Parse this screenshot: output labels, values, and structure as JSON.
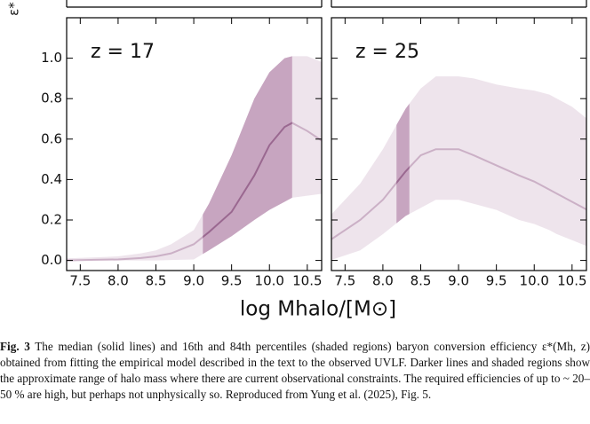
{
  "y_label": "ε*",
  "x_label": "log Mhalo/[M⊙]",
  "chart_data": [
    {
      "type": "line",
      "annotation": "z = 17",
      "x": [
        7.3,
        7.7,
        8.0,
        8.3,
        8.5,
        8.7,
        9.0,
        9.2,
        9.5,
        9.8,
        10.0,
        10.2,
        10.3,
        10.5,
        10.7
      ],
      "series": [
        {
          "name": "median",
          "color": "#a77b9f",
          "values": [
            0,
            0.003,
            0.005,
            0.012,
            0.02,
            0.035,
            0.08,
            0.14,
            0.24,
            0.42,
            0.57,
            0.66,
            0.68,
            0.64,
            0.59
          ]
        },
        {
          "name": "16th percentile",
          "color": "#c7a5c0",
          "values": [
            0,
            0,
            0,
            0,
            0,
            0.002,
            0.005,
            0.05,
            0.12,
            0.2,
            0.25,
            0.29,
            0.31,
            0.32,
            0.33
          ]
        },
        {
          "name": "84th percentile",
          "color": "#c7a5c0",
          "values": [
            0.01,
            0.015,
            0.02,
            0.035,
            0.05,
            0.08,
            0.15,
            0.28,
            0.52,
            0.8,
            0.93,
            1.0,
            1.01,
            1.01,
            0.98
          ]
        }
      ],
      "highlight_x": [
        9.12,
        10.3
      ],
      "xlim": [
        7.32,
        10.69
      ],
      "ylim": [
        -0.05,
        1.2
      ],
      "xticks": [
        7.5,
        {
          "value": 8,
          "label": "8.0"
        },
        8.5,
        {
          "value": 9,
          "label": "9.0"
        },
        9.5,
        {
          "value": 10,
          "label": "10.0"
        },
        10.5
      ],
      "yticks": [
        {
          "value": 0,
          "label": "0.0"
        },
        0.2,
        0.4,
        0.6,
        0.8,
        {
          "value": 1,
          "label": "1.0"
        }
      ]
    },
    {
      "type": "line",
      "annotation": "z = 25",
      "x": [
        7.3,
        7.7,
        8.0,
        8.3,
        8.5,
        8.7,
        9.0,
        9.2,
        9.5,
        9.8,
        10.0,
        10.2,
        10.3,
        10.5,
        10.7
      ],
      "series": [
        {
          "name": "median",
          "color": "#a77b9f",
          "values": [
            0.1,
            0.2,
            0.3,
            0.44,
            0.52,
            0.55,
            0.55,
            0.52,
            0.47,
            0.42,
            0.39,
            0.35,
            0.33,
            0.29,
            0.25
          ]
        },
        {
          "name": "16th percentile",
          "color": "#c7a5c0",
          "values": [
            0,
            0.05,
            0.13,
            0.22,
            0.26,
            0.3,
            0.3,
            0.28,
            0.25,
            0.2,
            0.18,
            0.15,
            0.13,
            0.1,
            0.07
          ]
        },
        {
          "name": "84th percentile",
          "color": "#c7a5c0",
          "values": [
            0.22,
            0.38,
            0.55,
            0.75,
            0.85,
            0.91,
            0.91,
            0.9,
            0.87,
            0.85,
            0.84,
            0.82,
            0.8,
            0.76,
            0.7
          ]
        }
      ],
      "highlight_x": [
        8.18,
        8.35
      ],
      "xlim": [
        7.32,
        10.69
      ],
      "ylim": [
        -0.05,
        1.2
      ],
      "xticks": [
        7.5,
        {
          "value": 8,
          "label": "8.0"
        },
        8.5,
        {
          "value": 9,
          "label": "9.0"
        },
        9.5,
        {
          "value": 10,
          "label": "10.0"
        },
        10.5
      ],
      "yticks": [
        0,
        0.2,
        0.4,
        0.6,
        0.8,
        1
      ]
    }
  ],
  "caption": {
    "label": "Fig. 3",
    "text": " The median (solid lines) and 16th and 84th percentiles (shaded regions) baryon conversion efficiency ε*(Mh, z) obtained from fitting the empirical model described in the text to the observed UVLF. Darker lines and shaded regions show the approximate range of halo mass where there are current observational constraints. The required efficiencies of up to ~ 20–50 % are high, but perhaps not unphysically so. Reproduced from Yung et al. (2025), Fig. 5."
  }
}
